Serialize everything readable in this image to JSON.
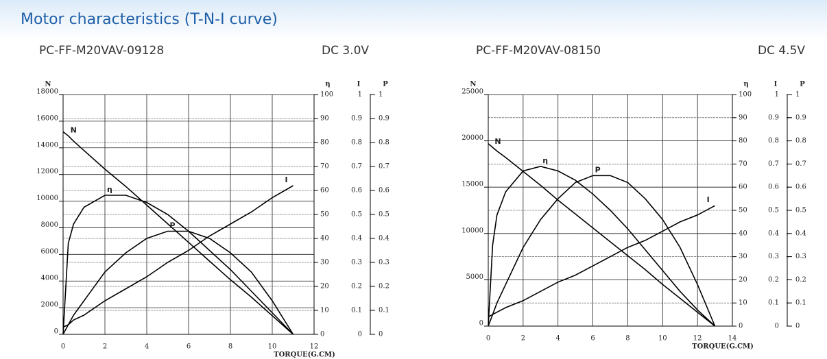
{
  "header": {
    "title": "Motor characteristics (T-N-I curve)"
  },
  "chart_data": [
    {
      "type": "line",
      "title": "PC-FF-M20VAV-09128",
      "subtitle": "DC 3.0V",
      "xlabel": "TORQUE(G.CM)",
      "ylabel": "N",
      "y2label": "η",
      "y3label": "I",
      "y4label": "P",
      "x": [
        0,
        0.25,
        0.5,
        1,
        2,
        3,
        4,
        5,
        6,
        7,
        8,
        9,
        10,
        11
      ],
      "xlim": [
        0,
        12
      ],
      "xticks": [
        0,
        2,
        4,
        6,
        8,
        10,
        12
      ],
      "ylim": [
        0,
        18000
      ],
      "yticks": [
        0,
        2000,
        4000,
        6000,
        8000,
        10000,
        12000,
        14000,
        16000,
        18000
      ],
      "y2lim": [
        0,
        100
      ],
      "y2ticks": [
        0,
        10,
        20,
        30,
        40,
        50,
        60,
        70,
        80,
        90,
        100
      ],
      "y3lim": [
        0,
        1
      ],
      "y3ticks": [
        0,
        0.1,
        0.2,
        0.3,
        0.4,
        0.5,
        0.6,
        0.7,
        0.8,
        0.9,
        1
      ],
      "y4lim": [
        0,
        1
      ],
      "y4ticks": [
        0,
        0.1,
        0.2,
        0.3,
        0.4,
        0.5,
        0.6,
        0.7,
        0.8,
        0.9,
        1
      ],
      "grid": true,
      "series": [
        {
          "name": "N",
          "color": "#000000",
          "axis": "y",
          "values": [
            15200,
            14900,
            14500,
            13800,
            12400,
            11100,
            9700,
            8300,
            6900,
            5500,
            4100,
            2800,
            1400,
            0
          ]
        },
        {
          "name": "η",
          "color": "#000000",
          "axis": "y2",
          "values": [
            0,
            38,
            46,
            53,
            58,
            58,
            55,
            50,
            43,
            35,
            27,
            18,
            9,
            0
          ]
        },
        {
          "name": "I",
          "color": "#000000",
          "axis": "y3",
          "values": [
            0.03,
            0.04,
            0.06,
            0.08,
            0.14,
            0.19,
            0.24,
            0.3,
            0.35,
            0.41,
            0.46,
            0.51,
            0.57,
            0.62
          ]
        },
        {
          "name": "P",
          "color": "#000000",
          "axis": "y4",
          "values": [
            0,
            0.04,
            0.08,
            0.14,
            0.26,
            0.34,
            0.4,
            0.43,
            0.43,
            0.4,
            0.34,
            0.26,
            0.14,
            0
          ]
        }
      ]
    },
    {
      "type": "line",
      "title": "PC-FF-M20VAV-08150",
      "subtitle": "DC 4.5V",
      "xlabel": "TORQUE(G.CM)",
      "ylabel": "N",
      "y2label": "η",
      "y3label": "I",
      "y4label": "P",
      "x": [
        0,
        0.25,
        0.5,
        1,
        2,
        3,
        4,
        5,
        6,
        7,
        8,
        9,
        10,
        11,
        12,
        13
      ],
      "xlim": [
        0,
        14
      ],
      "xticks": [
        0,
        2,
        4,
        6,
        8,
        10,
        12,
        14
      ],
      "ylim": [
        0,
        25000
      ],
      "yticks": [
        0,
        5000,
        10000,
        15000,
        20000,
        25000
      ],
      "y2lim": [
        0,
        100
      ],
      "y2ticks": [
        0,
        10,
        20,
        30,
        40,
        50,
        60,
        70,
        80,
        90,
        100
      ],
      "y3lim": [
        0,
        1
      ],
      "y3ticks": [
        0,
        0.1,
        0.2,
        0.3,
        0.4,
        0.5,
        0.6,
        0.7,
        0.8,
        0.9,
        1
      ],
      "y4lim": [
        0,
        1
      ],
      "y4ticks": [
        0,
        0.1,
        0.2,
        0.3,
        0.4,
        0.5,
        0.6,
        0.7,
        0.8,
        0.9,
        1
      ],
      "grid": true,
      "series": [
        {
          "name": "N",
          "color": "#000000",
          "axis": "y",
          "values": [
            19700,
            19300,
            18900,
            18200,
            16700,
            15200,
            13600,
            12100,
            10600,
            9100,
            7600,
            6100,
            4500,
            3000,
            1500,
            0
          ]
        },
        {
          "name": "η",
          "color": "#000000",
          "axis": "y2",
          "values": [
            0,
            35,
            48,
            58,
            67,
            69,
            67,
            63,
            57,
            50,
            42,
            33,
            24,
            15,
            7,
            0
          ]
        },
        {
          "name": "I",
          "color": "#000000",
          "axis": "y3",
          "values": [
            0.04,
            0.05,
            0.06,
            0.08,
            0.11,
            0.15,
            0.19,
            0.22,
            0.26,
            0.3,
            0.34,
            0.37,
            0.41,
            0.45,
            0.48,
            0.52
          ]
        },
        {
          "name": "P",
          "color": "#000000",
          "axis": "y4",
          "values": [
            0,
            0.05,
            0.1,
            0.18,
            0.34,
            0.46,
            0.55,
            0.62,
            0.65,
            0.65,
            0.62,
            0.55,
            0.46,
            0.34,
            0.18,
            0
          ]
        }
      ]
    }
  ]
}
